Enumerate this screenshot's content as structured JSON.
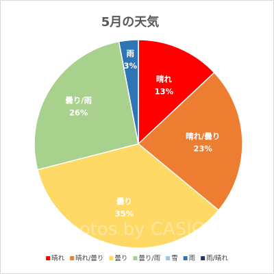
{
  "chart_data": {
    "type": "pie",
    "title": "5月の天気",
    "slices": [
      {
        "label": "晴れ",
        "value": 13,
        "display": "13%",
        "color": "#ff0000"
      },
      {
        "label": "晴れ/曇り",
        "value": 23,
        "display": "23%",
        "color": "#ed7d31"
      },
      {
        "label": "曇り",
        "value": 35,
        "display": "35%",
        "color": "#ffd966"
      },
      {
        "label": "曇り/雨",
        "value": 26,
        "display": "26%",
        "color": "#a9d18e"
      },
      {
        "label": "雪",
        "value": 0,
        "display": "",
        "color": "#9dc3e6"
      },
      {
        "label": "雨",
        "value": 3,
        "display": "3%",
        "color": "#2e75b6"
      },
      {
        "label": "雨/晴れ",
        "value": 0,
        "display": "",
        "color": "#203864"
      }
    ],
    "legend": {
      "position": "bottom",
      "entries": [
        "晴れ",
        "晴れ/曇り",
        "曇り",
        "曇り/雨",
        "雪",
        "雨",
        "雨/晴れ"
      ]
    }
  },
  "watermark": "Photos by CASIO"
}
